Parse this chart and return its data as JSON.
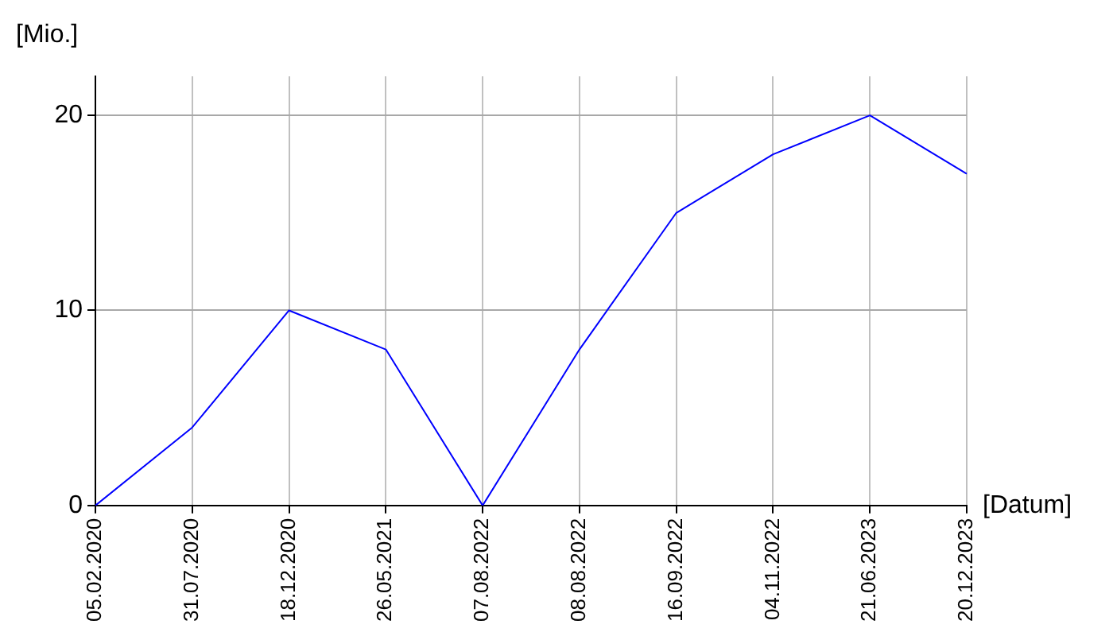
{
  "chart_data": {
    "type": "line",
    "xlabel": "[Datum]",
    "ylabel": "[Mio.]",
    "categories": [
      "05.02.2020",
      "31.07.2020",
      "18.12.2020",
      "26.05.2021",
      "07.08.2022",
      "08.08.2022",
      "16.09.2022",
      "04.11.2022",
      "21.06.2023",
      "20.12.2023"
    ],
    "series": [
      {
        "color": "#0000ff",
        "values": [
          0,
          4,
          10,
          8,
          0,
          8,
          15,
          18,
          20,
          17
        ]
      }
    ],
    "ylim": [
      0,
      22
    ],
    "yticks": [
      0,
      10,
      20
    ],
    "grid": true,
    "legend": false,
    "marker": "none",
    "line_style": "solid"
  }
}
